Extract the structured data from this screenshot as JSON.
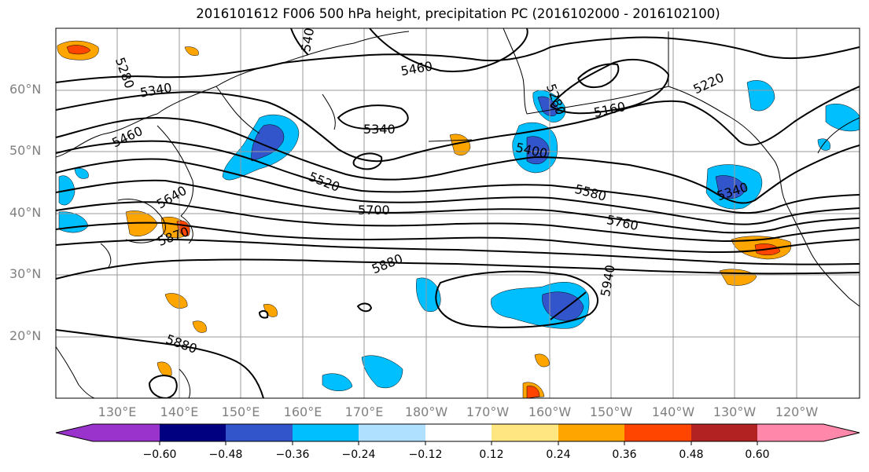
{
  "title": "2016101612 F006 500 hPa height, precipitation PC (2016102000 - 2016102100)",
  "lat_labels": [
    "60°N",
    "50°N",
    "40°N",
    "30°N",
    "20°N"
  ],
  "lon_labels": [
    "130°E",
    "140°E",
    "150°E",
    "160°E",
    "170°E",
    "180°W",
    "170°W",
    "160°W",
    "150°W",
    "140°W",
    "130°W",
    "120°W"
  ],
  "colorbar": {
    "tick_labels": [
      "−0.60",
      "−0.48",
      "−0.36",
      "−0.24",
      "−0.12",
      "0.12",
      "0.24",
      "0.36",
      "0.48",
      "0.60"
    ],
    "colors": [
      "#9933cc",
      "#000080",
      "#3355cc",
      "#00bfff",
      "#b0e0ff",
      "#ffffff",
      "#ffe680",
      "#ffa500",
      "#ff4500",
      "#b22222",
      "#ff88aa"
    ]
  },
  "contour_labels": [
    "5280",
    "5340",
    "5400",
    "5460",
    "5460",
    "5340",
    "5520",
    "5580",
    "5640",
    "5700",
    "5760",
    "5870",
    "5880",
    "5880",
    "5940",
    "5160",
    "5220",
    "5340",
    "5400",
    "5280",
    "540"
  ]
}
